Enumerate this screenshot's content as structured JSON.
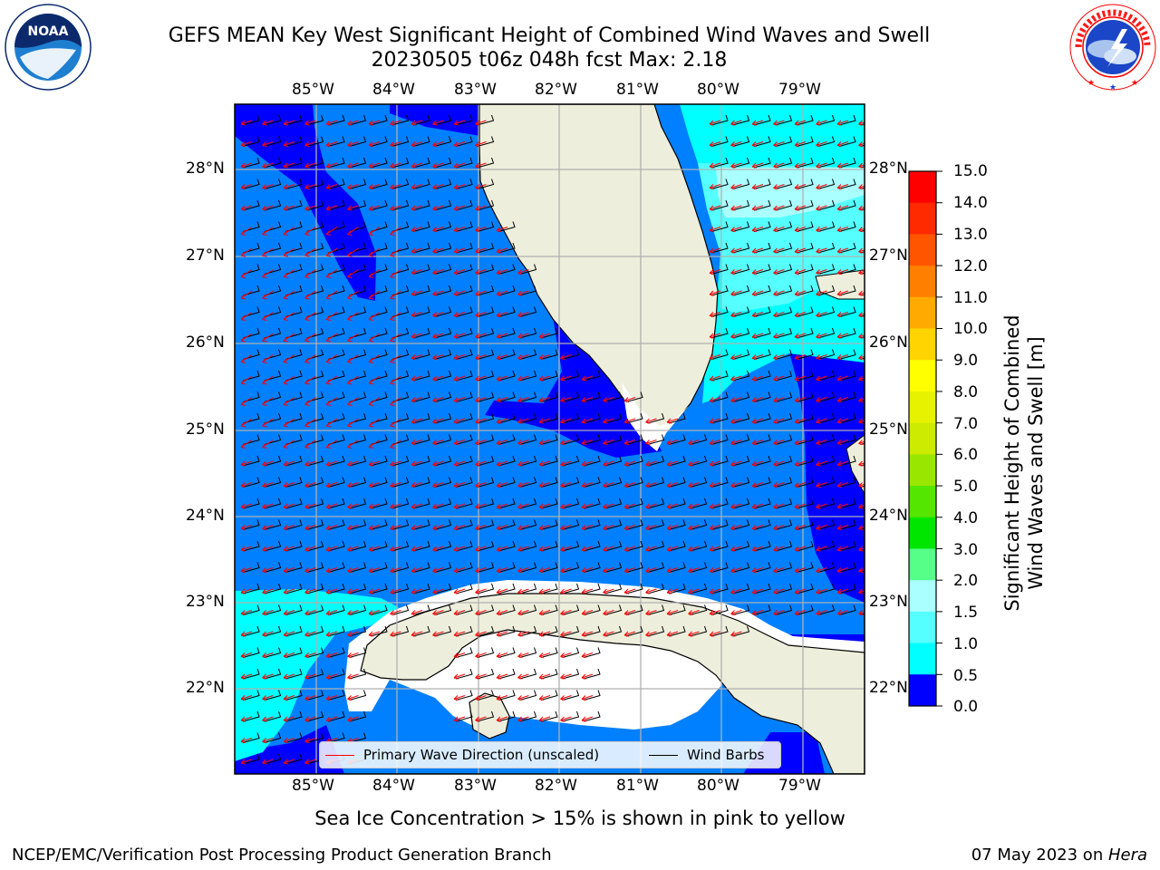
{
  "title_line1": "GEFS MEAN Key West Significant Height of Combined Wind Waves and Swell",
  "title_line2": "20230505 t06z 048h fcst   Max: 2.18",
  "subtitle": "Sea Ice Concentration > 15% is shown in pink to yellow",
  "footer_left": "NCEP/EMC/Verification Post Processing Product Generation Branch",
  "footer_date": "07 May 2023 on ",
  "footer_host": "Hera",
  "logo_left": {
    "icon": "noaa-logo",
    "text": "NOAA"
  },
  "logo_right": {
    "icon": "nws-logo",
    "ring_text": "NATIONAL WEATHER SERVICE"
  },
  "longitudes": [
    "85°W",
    "84°W",
    "83°W",
    "82°W",
    "81°W",
    "80°W",
    "79°W"
  ],
  "latitudes": [
    "28°N",
    "27°N",
    "26°N",
    "25°N",
    "24°N",
    "23°N",
    "22°N"
  ],
  "legend": {
    "wave_label": "Primary Wave Direction (unscaled)",
    "wave_color": "#ff0000",
    "barb_label": "Wind Barbs",
    "barb_color": "#000000"
  },
  "colorbar": {
    "label": "Significant Height of Combined Wind Waves and Swell [m]",
    "label_line1": "Significant Height of Combined",
    "label_line2": "Wind Waves and Swell [m]",
    "ticks": [
      "15.0",
      "14.0",
      "13.0",
      "12.0",
      "11.0",
      "10.0",
      "9.0",
      "8.0",
      "7.0",
      "6.0",
      "5.0",
      "4.0",
      "3.0",
      "2.0",
      "1.5",
      "1.0",
      "0.5",
      "0.0"
    ],
    "colors": [
      "#ff0000",
      "#ff2a00",
      "#ff5500",
      "#ff8000",
      "#ffaa00",
      "#ffd400",
      "#ffff00",
      "#e6f200",
      "#cceb00",
      "#99e600",
      "#55e600",
      "#00e600",
      "#55ff88",
      "#aaffff",
      "#55ffff",
      "#00ffff",
      "#0080ff",
      "#0000ff"
    ]
  },
  "colors": {
    "land": "#eeeedc",
    "band_0_05": "#0000ff",
    "band_05_10": "#0080ff",
    "band_10_15": "#00ffff",
    "band_15_20": "#55ffff",
    "band_20_30": "#aaffff",
    "grid": "#b0b0b0"
  }
}
